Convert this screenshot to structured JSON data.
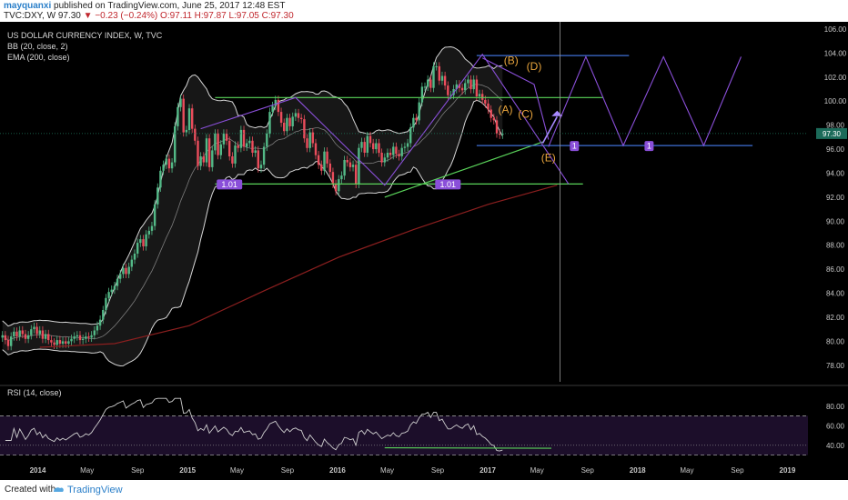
{
  "header": {
    "author": "mayquanxi",
    "published": "published on TradingView.com, June 25, 2017 12:48 EST",
    "symbol": "TVC:DXY, W",
    "last": "97.30",
    "arrow": "▼",
    "change": "−0.23 (−0.24%)",
    "ohlc": "O:97.11 H:97.87 L:97.05 C:97.30"
  },
  "footer": {
    "created": "Created with",
    "brand": "TradingView"
  },
  "colors": {
    "background": "#000000",
    "candle_up": "#53b987",
    "candle_down": "#eb4d5c",
    "bb_band": "#d6d6d6",
    "ema": "#8c1f1f",
    "channel_green": "#5ad45a",
    "channel_blue": "#3f6fd6",
    "pattern_purple": "#8a4fd9",
    "wave_label": "#e8a43c",
    "rsi_line": "#cfcfcf",
    "price_badge": "#1c6b5a"
  },
  "chart_data": [
    {
      "type": "candlestick",
      "title": "US DOLLAR CURRENCY INDEX, W, TVC",
      "indicators": [
        "BB (20, close, 2)",
        "EMA (200, close)"
      ],
      "y_ticks": [
        "106.00",
        "104.00",
        "102.00",
        "100.00",
        "98.00",
        "96.00",
        "94.00",
        "92.00",
        "90.00",
        "88.00",
        "86.00",
        "84.00",
        "82.00",
        "80.00",
        "78.00"
      ],
      "ylim": [
        77,
        106
      ],
      "x_ticks": [
        "2014",
        "May",
        "Sep",
        "2015",
        "May",
        "Sep",
        "2016",
        "May",
        "Sep",
        "2017",
        "May",
        "Sep",
        "2018",
        "May",
        "Sep",
        "2019"
      ],
      "last_price_label": "97.30",
      "labels": [
        "(A)",
        "(B)",
        "(C)",
        "(D)",
        "(E)",
        "1.01",
        "1.01",
        "1",
        "1"
      ],
      "close_series": {
        "start": "2013-10-07",
        "interval_weeks": 1,
        "values": [
          80.5,
          80.1,
          79.6,
          80.4,
          80.8,
          80.4,
          80.9,
          80.6,
          80.2,
          80.5,
          81.0,
          81.2,
          80.6,
          80.9,
          80.2,
          80.6,
          80.1,
          79.9,
          79.7,
          80.1,
          79.8,
          80.0,
          79.8,
          80.0,
          80.2,
          80.4,
          80.5,
          80.1,
          80.2,
          80.4,
          80.3,
          80.5,
          80.9,
          81.3,
          81.8,
          82.6,
          83.6,
          84.1,
          84.3,
          84.6,
          85.2,
          85.6,
          86.1,
          85.6,
          86.2,
          86.8,
          87.3,
          88.2,
          88.5,
          87.9,
          88.9,
          89.2,
          89.6,
          91.4,
          92.8,
          94.2,
          94.7,
          95.2,
          94.4,
          94.9,
          97.9,
          99.5,
          100.2,
          97.4,
          97.6,
          99.4,
          97.7,
          96.7,
          94.6,
          95.4,
          94.9,
          96.9,
          94.5,
          95.9,
          97.3,
          95.5,
          96.4,
          97.3,
          96.7,
          95.4,
          94.8,
          96.3,
          96.1,
          97.6,
          96.2,
          96.5,
          96.7,
          95.7,
          95.9,
          94.4,
          94.7,
          96.2,
          97.3,
          99.1,
          99.6,
          100.1,
          99.1,
          98.2,
          97.5,
          98.6,
          97.9,
          98.7,
          99.0,
          98.6,
          98.5,
          96.9,
          96.1,
          97.4,
          96.5,
          95.5,
          94.7,
          94.2,
          95.8,
          94.8,
          94.1,
          93.1,
          92.5,
          93.5,
          93.8,
          95.1,
          94.9,
          94.5,
          94.7,
          93.1,
          96.1,
          96.6,
          95.7,
          97.1,
          96.5,
          96.0,
          96.5,
          95.7,
          94.9,
          95.3,
          95.7,
          95.5,
          96.2,
          95.6,
          95.4,
          96.1,
          96.2,
          96.5,
          97.8,
          98.6,
          98.4,
          99.9,
          101.2,
          101.2,
          101.8,
          101.1,
          102.9,
          102.9,
          101.7,
          102.1,
          101.3,
          100.5,
          100.5,
          101.0,
          101.4,
          101.1,
          100.9,
          101.5,
          101.8,
          101.0,
          101.8,
          100.4,
          100.6,
          100.1,
          99.8,
          99.3,
          98.6,
          98.4,
          97.3,
          97.2,
          97.3
        ],
        "first_values_note": ""
      },
      "ema_200": {
        "x": [
          "2014-01-06",
          "2014-07-07",
          "2015-01-05",
          "2015-07-06",
          "2016-01-04",
          "2016-07-04",
          "2017-01-02",
          "2017-06-19"
        ],
        "y": [
          79.5,
          79.8,
          81.3,
          84.2,
          87.0,
          89.3,
          91.4,
          93.0
        ]
      }
    },
    {
      "type": "line",
      "title": "RSI (14, close)",
      "y_ticks": [
        "80.00",
        "60.00",
        "40.00"
      ],
      "ylim": [
        25,
        90
      ],
      "overbought": 70,
      "oversold": 30
    }
  ]
}
